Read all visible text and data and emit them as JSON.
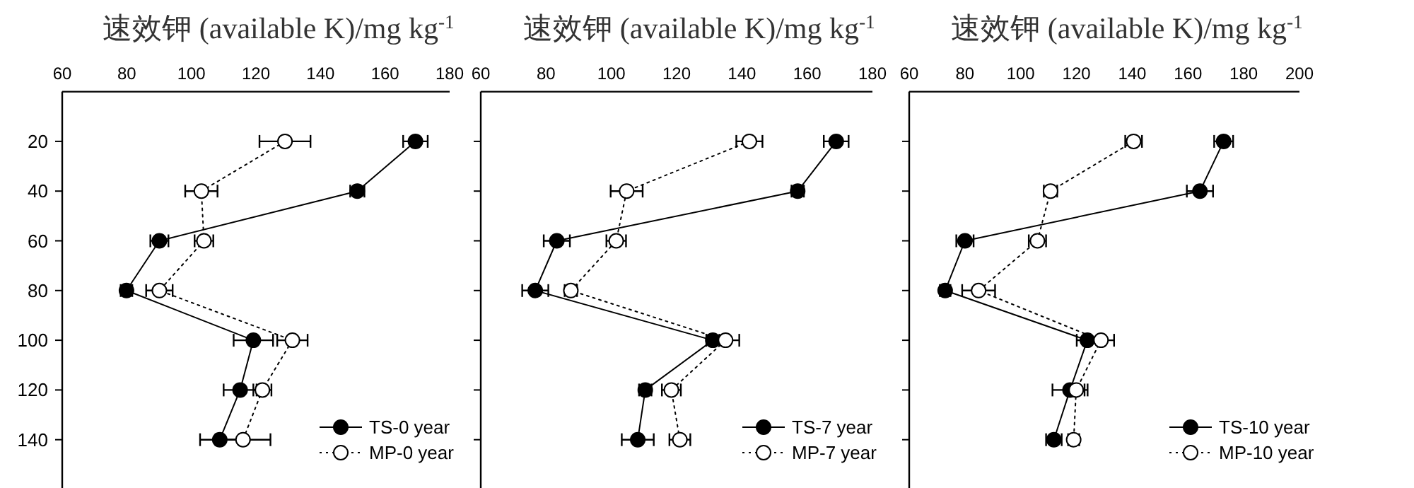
{
  "chart_data": [
    {
      "type": "line",
      "xlabel": "速效钾 (available K)/mg kg$^{-1}$",
      "orientation": "horizontal",
      "x": [
        20,
        40,
        60,
        80,
        100,
        120,
        140
      ],
      "xlim": [
        60,
        180
      ],
      "xticks": [
        60,
        80,
        100,
        120,
        140,
        160,
        180
      ],
      "ylim": [
        160,
        0
      ],
      "yticks": [
        20,
        40,
        60,
        80,
        100,
        120,
        140
      ],
      "legend": "bottom right",
      "grid": false,
      "series": [
        {
          "name": "TS-0 year",
          "color": "#000000",
          "marker": "circle",
          "line_style": "solid",
          "values": [
            169.4,
            151.4,
            90.1,
            79.9,
            119.2,
            115.1,
            108.8
          ],
          "errors": [
            3.8,
            2.2,
            2.8,
            1.8,
            6.1,
            5.1,
            6.1
          ]
        },
        {
          "name": "MP-0 year",
          "color": "#000000",
          "marker": "circle-open",
          "line_style": "dotted",
          "values": [
            129,
            103.1,
            103.9,
            90.1,
            131.3,
            122,
            116
          ],
          "errors": [
            7.9,
            5.0,
            2.9,
            4.1,
            4.7,
            2.8,
            8.5
          ]
        }
      ]
    },
    {
      "type": "line",
      "xlabel": "速效钾 (available K)/mg kg$^{-1}$",
      "orientation": "horizontal",
      "x": [
        20,
        40,
        60,
        80,
        100,
        120,
        140
      ],
      "xlim": [
        60,
        180
      ],
      "xticks": [
        60,
        80,
        100,
        120,
        140,
        160,
        180
      ],
      "ylim": [
        160,
        0
      ],
      "yticks": [
        20,
        40,
        60,
        80,
        100,
        120,
        140
      ],
      "tick_labels": "x",
      "legend": "bottom right",
      "grid": false,
      "series": [
        {
          "name": "TS-7 year",
          "color": "#000000",
          "marker": "circle",
          "line_style": "solid",
          "values": [
            168.9,
            157.1,
            83.3,
            76.7,
            131.1,
            110.4,
            108.1
          ],
          "errors": [
            3.8,
            1.9,
            4.0,
            4.0,
            2.0,
            1.9,
            4.9
          ]
        },
        {
          "name": "MP-7 year",
          "color": "#000000",
          "marker": "circle-open",
          "line_style": "dotted",
          "values": [
            142.3,
            104.7,
            101.5,
            87.6,
            135,
            118.4,
            121
          ],
          "errors": [
            4.0,
            4.9,
            3.0,
            1.9,
            4.2,
            2.9,
            3.2
          ]
        }
      ]
    },
    {
      "type": "line",
      "xlabel": "速效钾 (available K)/mg kg$^{-1}$",
      "orientation": "horizontal",
      "x": [
        20,
        40,
        60,
        80,
        100,
        120,
        140
      ],
      "xlim": [
        60,
        200
      ],
      "xticks": [
        60,
        80,
        100,
        120,
        140,
        160,
        180,
        200
      ],
      "ylim": [
        160,
        0
      ],
      "yticks": [
        20,
        40,
        60,
        80,
        100,
        120,
        140
      ],
      "tick_labels": "x",
      "legend": "bottom right",
      "grid": false,
      "series": [
        {
          "name": "TS-10 year",
          "color": "#000000",
          "marker": "circle",
          "line_style": "solid",
          "values": [
            172.8,
            164.3,
            80,
            72.9,
            123.9,
            117.7,
            111.9
          ],
          "errors": [
            3.4,
            4.7,
            3.1,
            1.9,
            3.8,
            6.3,
            2.8
          ]
        },
        {
          "name": "MP-10 year",
          "color": "#000000",
          "marker": "circle-open",
          "line_style": "dotted",
          "values": [
            140.5,
            110.7,
            106,
            84.9,
            128.8,
            119.9,
            119
          ],
          "errors": [
            3.0,
            2.4,
            3.1,
            5.9,
            4.7,
            3.0,
            2.0
          ]
        }
      ]
    }
  ]
}
